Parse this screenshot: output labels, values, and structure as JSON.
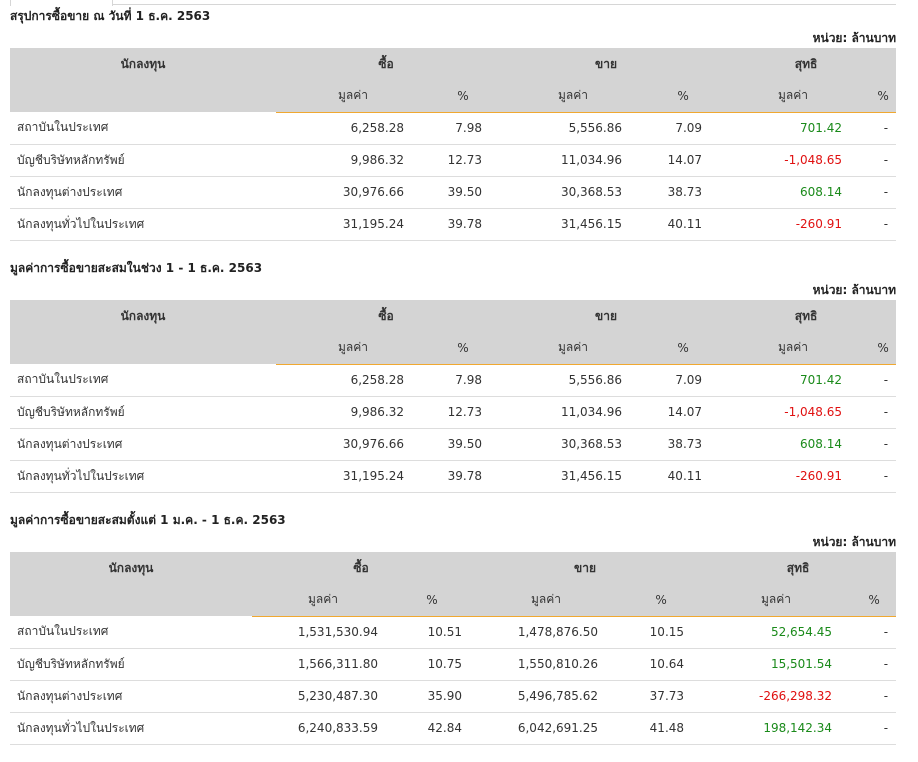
{
  "sections": [
    {
      "title": "สรุปการซื้อขาย ณ วันที่ 1 ธ.ค. 2563",
      "unit": "หน่วย: ล้านบาท",
      "headers": {
        "investor": "นักลงทุน",
        "buy": "ซื้อ",
        "sell": "ขาย",
        "net": "สุทธิ",
        "value": "มูลค่า",
        "pct": "%"
      },
      "rows": [
        {
          "name": "สถาบันในประเทศ",
          "buy": "6,258.28",
          "buy_pct": "7.98",
          "sell": "5,556.86",
          "sell_pct": "7.09",
          "net": "701.42",
          "net_pct": "-",
          "sign": "pos"
        },
        {
          "name": "บัญชีบริษัทหลักทรัพย์",
          "buy": "9,986.32",
          "buy_pct": "12.73",
          "sell": "11,034.96",
          "sell_pct": "14.07",
          "net": "-1,048.65",
          "net_pct": "-",
          "sign": "neg"
        },
        {
          "name": "นักลงทุนต่างประเทศ",
          "buy": "30,976.66",
          "buy_pct": "39.50",
          "sell": "30,368.53",
          "sell_pct": "38.73",
          "net": "608.14",
          "net_pct": "-",
          "sign": "pos"
        },
        {
          "name": "นักลงทุนทั่วไปในประเทศ",
          "buy": "31,195.24",
          "buy_pct": "39.78",
          "sell": "31,456.15",
          "sell_pct": "40.11",
          "net": "-260.91",
          "net_pct": "-",
          "sign": "neg"
        }
      ]
    },
    {
      "title": "มูลค่าการซื้อขายสะสมในช่วง 1 - 1 ธ.ค. 2563",
      "unit": "หน่วย: ล้านบาท",
      "headers": {
        "investor": "นักลงทุน",
        "buy": "ซื้อ",
        "sell": "ขาย",
        "net": "สุทธิ",
        "value": "มูลค่า",
        "pct": "%"
      },
      "rows": [
        {
          "name": "สถาบันในประเทศ",
          "buy": "6,258.28",
          "buy_pct": "7.98",
          "sell": "5,556.86",
          "sell_pct": "7.09",
          "net": "701.42",
          "net_pct": "-",
          "sign": "pos"
        },
        {
          "name": "บัญชีบริษัทหลักทรัพย์",
          "buy": "9,986.32",
          "buy_pct": "12.73",
          "sell": "11,034.96",
          "sell_pct": "14.07",
          "net": "-1,048.65",
          "net_pct": "-",
          "sign": "neg"
        },
        {
          "name": "นักลงทุนต่างประเทศ",
          "buy": "30,976.66",
          "buy_pct": "39.50",
          "sell": "30,368.53",
          "sell_pct": "38.73",
          "net": "608.14",
          "net_pct": "-",
          "sign": "pos"
        },
        {
          "name": "นักลงทุนทั่วไปในประเทศ",
          "buy": "31,195.24",
          "buy_pct": "39.78",
          "sell": "31,456.15",
          "sell_pct": "40.11",
          "net": "-260.91",
          "net_pct": "-",
          "sign": "neg"
        }
      ]
    },
    {
      "title": "มูลค่าการซื้อขายสะสมตั้งแต่ 1 ม.ค. - 1 ธ.ค. 2563",
      "unit": "หน่วย: ล้านบาท",
      "headers": {
        "investor": "นักลงทุน",
        "buy": "ซื้อ",
        "sell": "ขาย",
        "net": "สุทธิ",
        "value": "มูลค่า",
        "pct": "%"
      },
      "rows": [
        {
          "name": "สถาบันในประเทศ",
          "buy": "1,531,530.94",
          "buy_pct": "10.51",
          "sell": "1,478,876.50",
          "sell_pct": "10.15",
          "net": "52,654.45",
          "net_pct": "-",
          "sign": "pos"
        },
        {
          "name": "บัญชีบริษัทหลักทรัพย์",
          "buy": "1,566,311.80",
          "buy_pct": "10.75",
          "sell": "1,550,810.26",
          "sell_pct": "10.64",
          "net": "15,501.54",
          "net_pct": "-",
          "sign": "pos"
        },
        {
          "name": "นักลงทุนต่างประเทศ",
          "buy": "5,230,487.30",
          "buy_pct": "35.90",
          "sell": "5,496,785.62",
          "sell_pct": "37.73",
          "net": "-266,298.32",
          "net_pct": "-",
          "sign": "neg"
        },
        {
          "name": "นักลงทุนทั่วไปในประเทศ",
          "buy": "6,240,833.59",
          "buy_pct": "42.84",
          "sell": "6,042,691.25",
          "sell_pct": "41.48",
          "net": "198,142.34",
          "net_pct": "-",
          "sign": "pos"
        }
      ]
    }
  ],
  "colors": {
    "positive": "#1a8a1a",
    "negative": "#e01010",
    "header_bg": "#d4d4d4",
    "accent_line": "#f0a830"
  }
}
